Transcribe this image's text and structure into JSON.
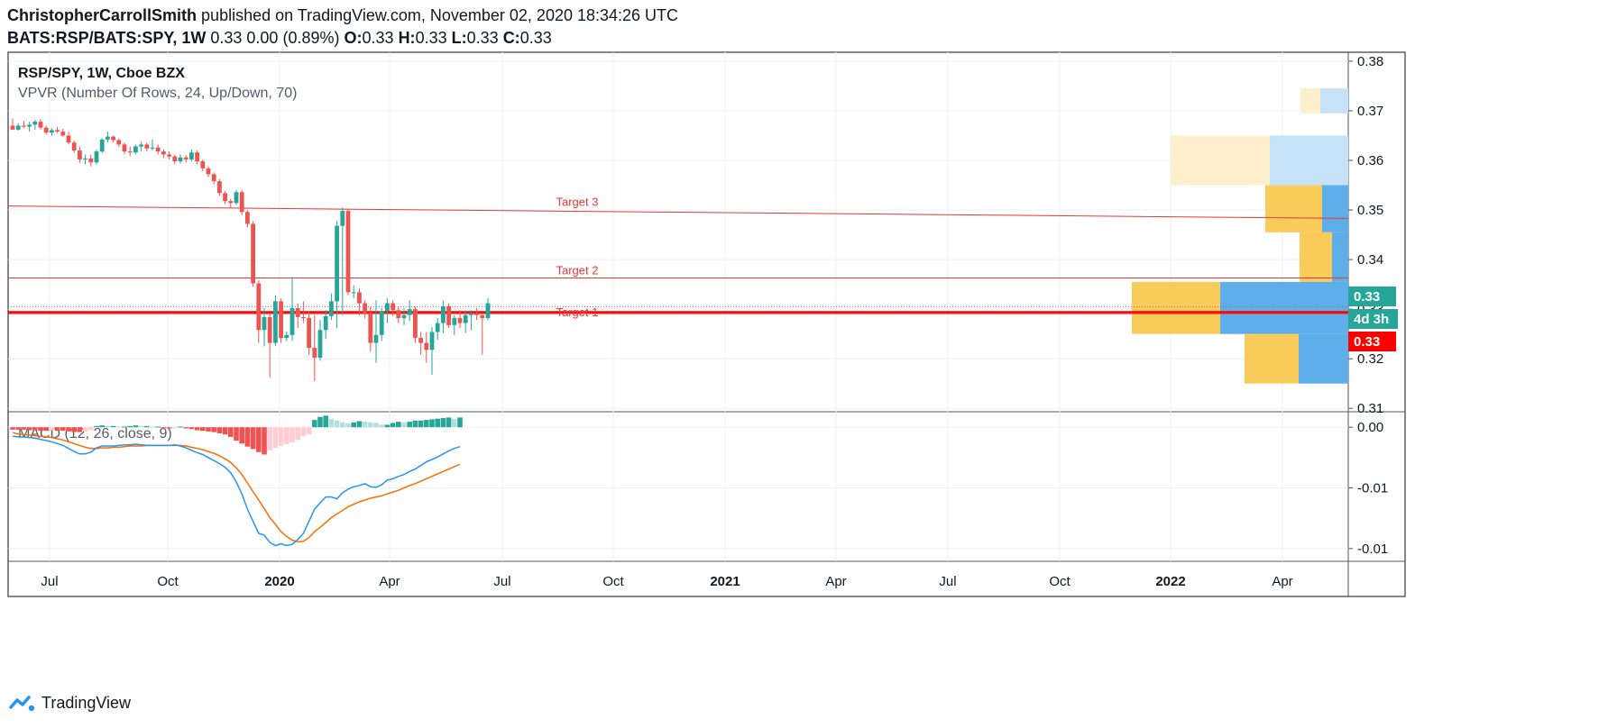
{
  "header": {
    "author": "ChristopherCarrollSmith",
    "published_text": "published on TradingView.com, November 02, 2020 18:34:26 UTC",
    "symbol": "BATS:RSP/BATS:SPY, 1W",
    "price_change": "0.33 0.00 (0.89%)",
    "ohlc": [
      {
        "k": "O:",
        "v": "0.33"
      },
      {
        "k": "H:",
        "v": "0.33"
      },
      {
        "k": "L:",
        "v": "0.33"
      },
      {
        "k": "C:",
        "v": "0.33"
      }
    ]
  },
  "legend": {
    "main_title": "RSP/SPY, 1W, Cboe BZX",
    "vpvr_title": "VPVR (Number Of Rows, 24, Up/Down, 70)",
    "macd_title": "MACD (12, 26, close, 9)"
  },
  "footer": {
    "brand": "TradingView"
  },
  "colors": {
    "up": "#26a69a",
    "down": "#ef5350",
    "grid": "#eef0f3",
    "macd_line": "#2196f3",
    "signal_line": "#ff6d00",
    "hist_up_strong": "#26a69a",
    "hist_up_weak": "#b2dfdb",
    "hist_down_strong": "#ef5350",
    "hist_down_weak": "#ffcdd2",
    "vp_up": "#f9cb5b",
    "vp_down": "#5eaeea",
    "vp_up_faded": "#fdefcb",
    "vp_down_faded": "#c6e2f8",
    "price_badge": "#26a69a",
    "target": "#e53935",
    "red_badge": "#ff0000"
  },
  "chart_data": [
    {
      "type": "candlestick",
      "x_axis_labels": [
        "Jul",
        "Oct",
        "2020",
        "Apr",
        "Jul",
        "Oct",
        "2021",
        "Apr",
        "Jul",
        "Oct",
        "2022",
        "Apr"
      ],
      "x_axis_bold": [
        "2020",
        "2021",
        "2022"
      ],
      "y_ticks": [
        "0.38",
        "0.37",
        "0.36",
        "0.35",
        "0.34",
        "0.33",
        "0.32",
        "0.31"
      ],
      "ylim": [
        0.3095,
        0.3818
      ],
      "candles": [
        [
          0.367,
          0.3685,
          0.3665,
          0.3662
        ],
        [
          0.3662,
          0.3675,
          0.366,
          0.367
        ],
        [
          0.367,
          0.368,
          0.3665,
          0.3668
        ],
        [
          0.3668,
          0.3678,
          0.3658,
          0.3672
        ],
        [
          0.3672,
          0.3682,
          0.3662,
          0.3678
        ],
        [
          0.3678,
          0.3684,
          0.3662,
          0.3666
        ],
        [
          0.3666,
          0.367,
          0.3652,
          0.3656
        ],
        [
          0.3656,
          0.3665,
          0.365,
          0.3661
        ],
        [
          0.3661,
          0.3668,
          0.3655,
          0.3658
        ],
        [
          0.3658,
          0.3664,
          0.3648,
          0.365
        ],
        [
          0.365,
          0.3658,
          0.3632,
          0.3636
        ],
        [
          0.3636,
          0.364,
          0.3615,
          0.362
        ],
        [
          0.362,
          0.3628,
          0.3595,
          0.3602
        ],
        [
          0.3602,
          0.3612,
          0.3592,
          0.3604
        ],
        [
          0.3604,
          0.3612,
          0.3588,
          0.3596
        ],
        [
          0.3596,
          0.3622,
          0.3592,
          0.3618
        ],
        [
          0.3618,
          0.3645,
          0.3615,
          0.3642
        ],
        [
          0.3642,
          0.3658,
          0.3636,
          0.3648
        ],
        [
          0.3648,
          0.365,
          0.3636,
          0.3641
        ],
        [
          0.3641,
          0.3644,
          0.3627,
          0.3632
        ],
        [
          0.3632,
          0.3636,
          0.3612,
          0.3618
        ],
        [
          0.3618,
          0.3628,
          0.3608,
          0.3616
        ],
        [
          0.3616,
          0.3632,
          0.3612,
          0.3628
        ],
        [
          0.3628,
          0.3638,
          0.3618,
          0.3632
        ],
        [
          0.3632,
          0.3636,
          0.3618,
          0.3624
        ],
        [
          0.3624,
          0.3642,
          0.362,
          0.3626
        ],
        [
          0.3626,
          0.3632,
          0.3612,
          0.3618
        ],
        [
          0.3618,
          0.3622,
          0.3605,
          0.3612
        ],
        [
          0.3612,
          0.3618,
          0.3602,
          0.3608
        ],
        [
          0.3608,
          0.3612,
          0.3592,
          0.3598
        ],
        [
          0.3598,
          0.3612,
          0.3594,
          0.3606
        ],
        [
          0.3606,
          0.361,
          0.3596,
          0.3602
        ],
        [
          0.3602,
          0.3622,
          0.3598,
          0.3616
        ],
        [
          0.3616,
          0.362,
          0.3592,
          0.3598
        ],
        [
          0.3598,
          0.3602,
          0.3578,
          0.3584
        ],
        [
          0.3584,
          0.3588,
          0.3566,
          0.3572
        ],
        [
          0.3572,
          0.3576,
          0.3552,
          0.3558
        ],
        [
          0.3558,
          0.3562,
          0.3528,
          0.3534
        ],
        [
          0.3534,
          0.3538,
          0.3512,
          0.3518
        ],
        [
          0.3518,
          0.3522,
          0.3505,
          0.3514
        ],
        [
          0.3514,
          0.354,
          0.351,
          0.3536
        ],
        [
          0.3536,
          0.354,
          0.349,
          0.3496
        ],
        [
          0.3496,
          0.35,
          0.3465,
          0.3472
        ],
        [
          0.3472,
          0.3478,
          0.3345,
          0.3352
        ],
        [
          0.3352,
          0.3358,
          0.3232,
          0.3258
        ],
        [
          0.3258,
          0.3302,
          0.3225,
          0.3284
        ],
        [
          0.3284,
          0.3292,
          0.3162,
          0.3232
        ],
        [
          0.3232,
          0.3328,
          0.3226,
          0.3316
        ],
        [
          0.3316,
          0.3322,
          0.3232,
          0.3242
        ],
        [
          0.3242,
          0.3255,
          0.3236,
          0.3248
        ],
        [
          0.3248,
          0.3365,
          0.3236,
          0.3302
        ],
        [
          0.3302,
          0.3312,
          0.3262,
          0.3284
        ],
        [
          0.3284,
          0.3316,
          0.3272,
          0.3282
        ],
        [
          0.3282,
          0.3296,
          0.3208,
          0.3222
        ],
        [
          0.3222,
          0.3288,
          0.3155,
          0.3202
        ],
        [
          0.3202,
          0.3278,
          0.3196,
          0.3258
        ],
        [
          0.3258,
          0.3298,
          0.324,
          0.3286
        ],
        [
          0.3286,
          0.3332,
          0.3278,
          0.3316
        ],
        [
          0.3316,
          0.3478,
          0.3262,
          0.3468
        ],
        [
          0.3468,
          0.3505,
          0.3288,
          0.3498
        ],
        [
          0.3498,
          0.3502,
          0.3328,
          0.3334
        ],
        [
          0.3334,
          0.3348,
          0.3322,
          0.3334
        ],
        [
          0.3334,
          0.3342,
          0.3288,
          0.3312
        ],
        [
          0.3312,
          0.3318,
          0.3282,
          0.3292
        ],
        [
          0.3292,
          0.3304,
          0.3215,
          0.3232
        ],
        [
          0.3232,
          0.3318,
          0.3192,
          0.3248
        ],
        [
          0.3248,
          0.3302,
          0.3236,
          0.3296
        ],
        [
          0.3296,
          0.3322,
          0.3272,
          0.3312
        ],
        [
          0.3312,
          0.3318,
          0.3286,
          0.3298
        ],
        [
          0.3298,
          0.3305,
          0.3272,
          0.3282
        ],
        [
          0.3282,
          0.3302,
          0.3268,
          0.3288
        ],
        [
          0.3288,
          0.3318,
          0.3276,
          0.33
        ],
        [
          0.33,
          0.3305,
          0.3232,
          0.3242
        ],
        [
          0.3242,
          0.3254,
          0.3208,
          0.3232
        ],
        [
          0.3232,
          0.3254,
          0.3192,
          0.3218
        ],
        [
          0.3218,
          0.3264,
          0.3168,
          0.3254
        ],
        [
          0.3254,
          0.3282,
          0.3238,
          0.3272
        ],
        [
          0.3272,
          0.3318,
          0.3252,
          0.3306
        ],
        [
          0.3306,
          0.3312,
          0.3262,
          0.3268
        ],
        [
          0.3268,
          0.3288,
          0.3248,
          0.3282
        ],
        [
          0.3282,
          0.3298,
          0.3262,
          0.3272
        ],
        [
          0.3272,
          0.3298,
          0.3252,
          0.3288
        ],
        [
          0.3288,
          0.3298,
          0.3258,
          0.3292
        ],
        [
          0.3292,
          0.3302,
          0.3278,
          0.3288
        ],
        [
          0.3288,
          0.3292,
          0.3208,
          0.3282
        ],
        [
          0.3282,
          0.3322,
          0.3278,
          0.3312
        ]
      ],
      "target_lines": [
        {
          "label": "Target 3",
          "y_start": 0.3508,
          "y_end": 0.3483
        },
        {
          "label": "Target 2",
          "y": 0.3363
        },
        {
          "label": "Target 1",
          "y": 0.3291
        }
      ],
      "current_price_line": 0.3294,
      "dotted_line": 0.3305,
      "price_badges": [
        {
          "text": "0.33",
          "kind": "last"
        },
        {
          "text": "4d 3h",
          "kind": "countdown"
        },
        {
          "text": "0.33",
          "kind": "red"
        }
      ],
      "volume_profile": [
        {
          "low": 0.3695,
          "high": 0.3745,
          "up": 22,
          "down": 31,
          "faded": true
        },
        {
          "low": 0.355,
          "high": 0.365,
          "up": 110,
          "down": 87,
          "faded": true
        },
        {
          "low": 0.3455,
          "high": 0.355,
          "up": 63,
          "down": 29,
          "faded": false
        },
        {
          "low": 0.3355,
          "high": 0.3455,
          "up": 36,
          "down": 18,
          "faded": false
        },
        {
          "low": 0.325,
          "high": 0.3355,
          "up": 98,
          "down": 142,
          "faded": false
        },
        {
          "low": 0.315,
          "high": 0.325,
          "up": 60,
          "down": 55,
          "faded": false
        }
      ]
    },
    {
      "type": "macd",
      "title": "MACD (12, 26, close, 9)",
      "y_ticks": [
        "0.00",
        "-0.01",
        "-0.01"
      ],
      "histogram": [
        -0.0004,
        -0.0004,
        -0.0004,
        -0.0005,
        -0.0005,
        -0.0006,
        -0.0006,
        -0.0005,
        -0.0006,
        -0.0006,
        -0.0007,
        -0.0008,
        -0.0008,
        -0.0007,
        -0.0005,
        0.0002,
        0.0003,
        0.0002,
        0.0002,
        0.0001,
        0.0001,
        0.0002,
        0.0003,
        0.0002,
        0.0002,
        0.0001,
        0.0001,
        -0.0001,
        -0.0002,
        -0.0001,
        0.0001,
        -0.0002,
        -0.0003,
        -0.0005,
        -0.0006,
        -0.0007,
        -0.0008,
        -0.001,
        -0.0012,
        -0.0016,
        -0.0022,
        -0.0027,
        -0.0032,
        -0.0036,
        -0.0041,
        -0.0045,
        -0.0038,
        -0.0034,
        -0.0031,
        -0.0028,
        -0.0025,
        -0.0021,
        -0.0015,
        -0.0012,
        0.0012,
        0.0017,
        0.0019,
        0.0014,
        0.0011,
        0.0008,
        0.0006,
        0.0008,
        0.001,
        0.0009,
        0.0008,
        0.0007,
        0.0004,
        0.0004,
        0.0007,
        0.0009,
        0.0008,
        0.0009,
        0.0011,
        0.0011,
        0.0012,
        0.0013,
        0.0014,
        0.0015,
        0.0016,
        0.0014,
        0.0016
      ],
      "macd": [
        -0.0015,
        -0.0016,
        -0.0016,
        -0.0017,
        -0.0018,
        -0.002,
        -0.0022,
        -0.0024,
        -0.0027,
        -0.003,
        -0.0035,
        -0.004,
        -0.0044,
        -0.0044,
        -0.0041,
        -0.0034,
        -0.0031,
        -0.0031,
        -0.0031,
        -0.003,
        -0.0029,
        -0.0029,
        -0.0028,
        -0.0029,
        -0.003,
        -0.003,
        -0.003,
        -0.003,
        -0.003,
        -0.0029,
        -0.0031,
        -0.0034,
        -0.0038,
        -0.0042,
        -0.0045,
        -0.005,
        -0.0055,
        -0.006,
        -0.0066,
        -0.0075,
        -0.009,
        -0.011,
        -0.0135,
        -0.0155,
        -0.0175,
        -0.0178,
        -0.019,
        -0.0195,
        -0.0192,
        -0.0195,
        -0.0193,
        -0.0185,
        -0.0175,
        -0.0155,
        -0.0135,
        -0.0125,
        -0.0115,
        -0.0115,
        -0.0118,
        -0.0108,
        -0.0102,
        -0.0098,
        -0.0096,
        -0.0093,
        -0.0098,
        -0.0099,
        -0.0095,
        -0.0087,
        -0.0085,
        -0.0081,
        -0.0078,
        -0.0073,
        -0.0069,
        -0.0063,
        -0.0057,
        -0.0053,
        -0.0049,
        -0.0044,
        -0.0039,
        -0.0035,
        -0.0032
      ],
      "signal": [
        -0.0009,
        -0.0011,
        -0.0012,
        -0.0013,
        -0.0014,
        -0.0015,
        -0.0016,
        -0.0017,
        -0.0019,
        -0.0021,
        -0.0024,
        -0.0027,
        -0.003,
        -0.0033,
        -0.0035,
        -0.0035,
        -0.0034,
        -0.0034,
        -0.0033,
        -0.0033,
        -0.0032,
        -0.0031,
        -0.0031,
        -0.0031,
        -0.003,
        -0.003,
        -0.003,
        -0.003,
        -0.003,
        -0.003,
        -0.003,
        -0.0031,
        -0.0033,
        -0.0035,
        -0.0037,
        -0.004,
        -0.0043,
        -0.0047,
        -0.0052,
        -0.0058,
        -0.0067,
        -0.0078,
        -0.0092,
        -0.0106,
        -0.012,
        -0.0134,
        -0.0149,
        -0.016,
        -0.0172,
        -0.018,
        -0.0186,
        -0.0189,
        -0.0188,
        -0.0182,
        -0.0172,
        -0.0165,
        -0.0157,
        -0.0149,
        -0.0143,
        -0.0137,
        -0.0131,
        -0.0127,
        -0.0123,
        -0.012,
        -0.0117,
        -0.0115,
        -0.0113,
        -0.011,
        -0.0107,
        -0.0104,
        -0.01,
        -0.0096,
        -0.0093,
        -0.0089,
        -0.0085,
        -0.0081,
        -0.0077,
        -0.0073,
        -0.0069,
        -0.0065,
        -0.0061
      ]
    }
  ]
}
